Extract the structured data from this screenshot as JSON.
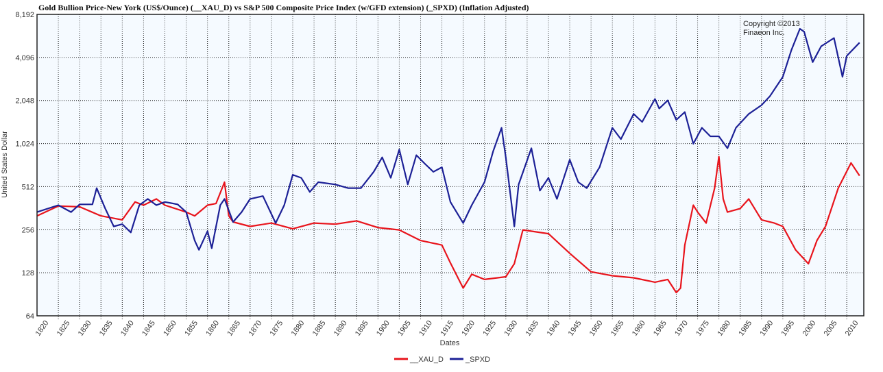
{
  "chart_data": {
    "type": "line",
    "title": "Gold Bullion Price-New York (US$/Ounce) (__XAU_D)  vs  S&P 500 Composite Price Index (w/GFD extension) (_SPXD) (Inflation Adjusted)",
    "xlabel": "Dates",
    "ylabel": "United States Dollar",
    "y_scale": "log2",
    "ylim": [
      64,
      8192
    ],
    "xlim": [
      1820,
      2014
    ],
    "y_ticks": [
      "64",
      "128",
      "256",
      "512",
      "1,024",
      "2,048",
      "4,096",
      "8,192"
    ],
    "x_ticks": [
      "1820",
      "1825",
      "1830",
      "1835",
      "1840",
      "1845",
      "1850",
      "1855",
      "1860",
      "1865",
      "1870",
      "1875",
      "1880",
      "1885",
      "1890",
      "1895",
      "1900",
      "1905",
      "1910",
      "1915",
      "1920",
      "1925",
      "1930",
      "1935",
      "1940",
      "1945",
      "1950",
      "1955",
      "1960",
      "1965",
      "1970",
      "1975",
      "1980",
      "1985",
      "1990",
      "1995",
      "2000",
      "2005",
      "2010"
    ],
    "grid": true,
    "legend_position": "bottom",
    "annotation": [
      "Copyright ©2013",
      "Finaeon Inc."
    ],
    "background": "#f5faff",
    "series": [
      {
        "name": "__XAU_D",
        "color": "#e8141c",
        "x": [
          1820,
          1825,
          1830,
          1835,
          1840,
          1843,
          1845,
          1848,
          1850,
          1855,
          1857,
          1860,
          1862,
          1864,
          1865,
          1866,
          1870,
          1875,
          1880,
          1885,
          1890,
          1895,
          1900,
          1905,
          1910,
          1915,
          1917,
          1920,
          1922,
          1925,
          1930,
          1932,
          1934,
          1940,
          1945,
          1950,
          1955,
          1960,
          1965,
          1968,
          1970,
          1971,
          1972,
          1974,
          1975,
          1977,
          1979,
          1980,
          1981,
          1982,
          1985,
          1987,
          1990,
          1993,
          1995,
          1998,
          2001,
          2003,
          2005,
          2008,
          2011,
          2013
        ],
        "values": [
          320,
          375,
          370,
          320,
          300,
          400,
          380,
          420,
          380,
          340,
          320,
          380,
          390,
          550,
          320,
          290,
          270,
          285,
          260,
          285,
          280,
          295,
          265,
          255,
          215,
          200,
          150,
          100,
          125,
          115,
          120,
          148,
          255,
          240,
          175,
          130,
          122,
          118,
          110,
          115,
          93,
          100,
          200,
          380,
          340,
          285,
          500,
          830,
          420,
          340,
          360,
          420,
          300,
          285,
          270,
          185,
          148,
          215,
          270,
          500,
          750,
          610
        ]
      },
      {
        "name": "_SPXD",
        "color": "#1c2096",
        "x": [
          1820,
          1825,
          1828,
          1830,
          1833,
          1834,
          1836,
          1838,
          1840,
          1842,
          1844,
          1846,
          1848,
          1850,
          1853,
          1855,
          1857,
          1858,
          1860,
          1861,
          1863,
          1864,
          1866,
          1868,
          1870,
          1873,
          1876,
          1878,
          1880,
          1882,
          1884,
          1886,
          1890,
          1893,
          1896,
          1899,
          1901,
          1903,
          1905,
          1907,
          1909,
          1911,
          1913,
          1915,
          1917,
          1920,
          1922,
          1925,
          1927,
          1929,
          1930,
          1932,
          1933,
          1936,
          1938,
          1940,
          1942,
          1945,
          1947,
          1949,
          1952,
          1955,
          1957,
          1960,
          1962,
          1965,
          1966,
          1968,
          1970,
          1972,
          1974,
          1976,
          1978,
          1980,
          1982,
          1984,
          1987,
          1990,
          1992,
          1995,
          1997,
          1999,
          2000,
          2002,
          2004,
          2007,
          2009,
          2010,
          2013
        ],
        "values": [
          340,
          380,
          340,
          385,
          385,
          500,
          360,
          270,
          280,
          245,
          380,
          420,
          380,
          400,
          385,
          340,
          215,
          185,
          250,
          190,
          380,
          420,
          290,
          340,
          420,
          440,
          285,
          380,
          620,
          590,
          470,
          550,
          530,
          500,
          500,
          650,
          820,
          590,
          930,
          530,
          850,
          740,
          650,
          700,
          400,
          285,
          380,
          550,
          900,
          1320,
          820,
          270,
          530,
          950,
          480,
          590,
          420,
          790,
          550,
          500,
          700,
          1320,
          1100,
          1650,
          1450,
          2100,
          1800,
          2050,
          1500,
          1700,
          1020,
          1320,
          1150,
          1150,
          950,
          1320,
          1650,
          1900,
          2200,
          3000,
          4600,
          6500,
          6200,
          3800,
          4900,
          5600,
          3000,
          4200,
          5200
        ]
      }
    ]
  }
}
